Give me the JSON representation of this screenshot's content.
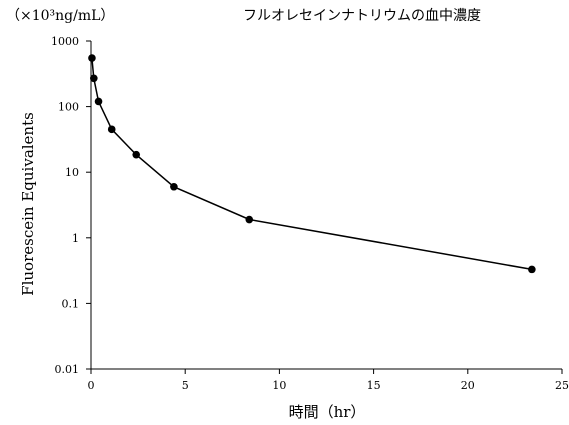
{
  "chart_data": {
    "type": "line",
    "title": "フルオレセインナトリウムの血中濃度",
    "unit_label": "（×10³ng/mL）",
    "xlabel": "時間（hr）",
    "ylabel": "Fluorescein Equivalents",
    "xlim": [
      0,
      25
    ],
    "ylim": [
      0.01,
      1000
    ],
    "yscale": "log",
    "xticks": [
      "0",
      "5",
      "10",
      "15",
      "20",
      "25"
    ],
    "yticks": [
      "0.01",
      "0.1",
      "1",
      "10",
      "100",
      "1000"
    ],
    "grid": false,
    "legend": "none",
    "series": [
      {
        "x": [
          0.05,
          0.15,
          0.4,
          1.1,
          2.4,
          4.4,
          8.4,
          23.4
        ],
        "y": [
          550,
          270,
          120,
          45,
          18.5,
          6,
          1.9,
          0.33
        ]
      }
    ],
    "colors": {
      "line": "#000000",
      "marker": "#000000"
    }
  }
}
